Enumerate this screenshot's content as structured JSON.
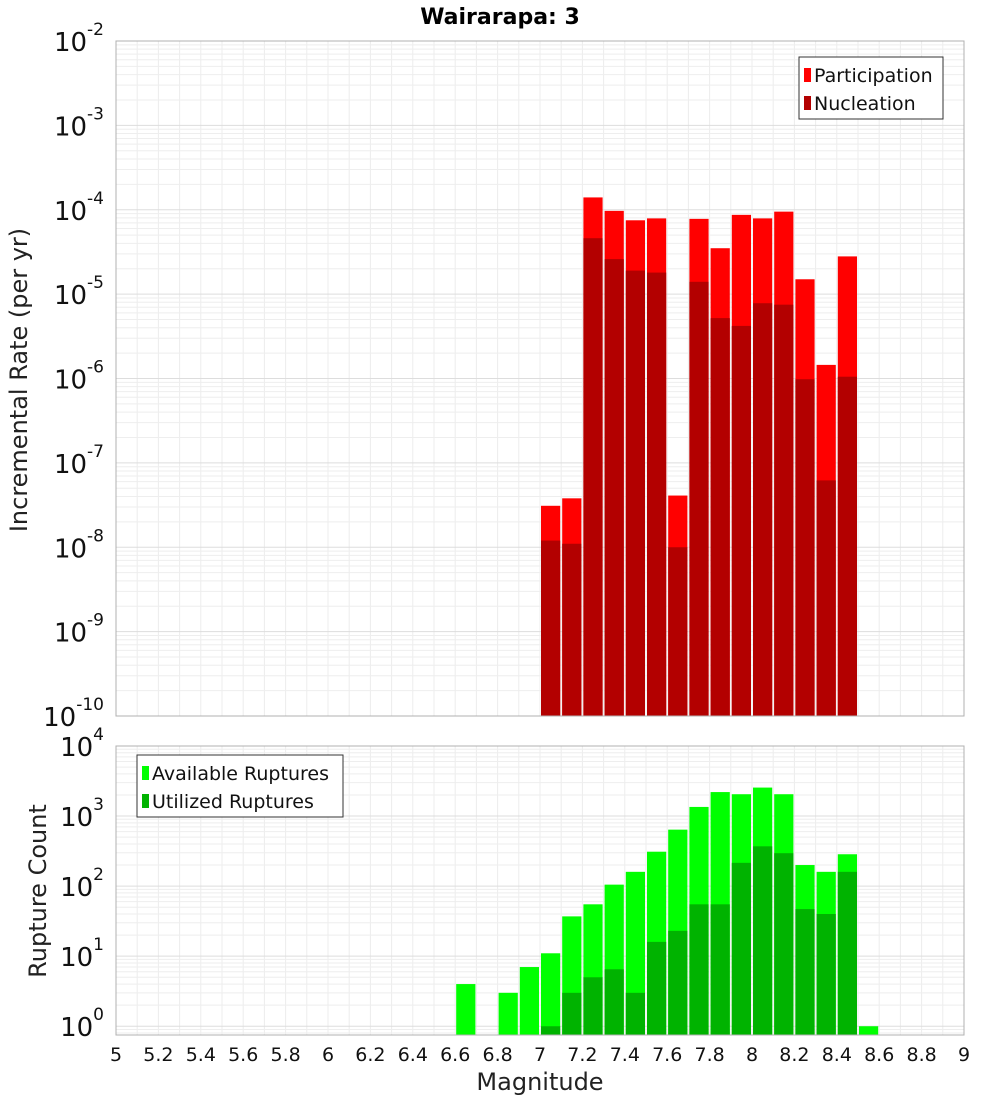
{
  "chart_data": [
    {
      "type": "bar",
      "title": "Wairarapa: 3",
      "xlabel": "",
      "ylabel": "Incremental Rate (per yr)",
      "yscale": "log",
      "ylim": [
        1e-10,
        0.01
      ],
      "xlim": [
        5,
        9
      ],
      "grid": true,
      "legend_position": "top-right",
      "y_tick_labels": [
        {
          "base": "10",
          "exp": "-10"
        },
        {
          "base": "10",
          "exp": "-9"
        },
        {
          "base": "10",
          "exp": "-8"
        },
        {
          "base": "10",
          "exp": "-7"
        },
        {
          "base": "10",
          "exp": "-6"
        },
        {
          "base": "10",
          "exp": "-5"
        },
        {
          "base": "10",
          "exp": "-4"
        },
        {
          "base": "10",
          "exp": "-3"
        },
        {
          "base": "10",
          "exp": "-2"
        }
      ],
      "x": [
        7.05,
        7.15,
        7.25,
        7.35,
        7.45,
        7.55,
        7.65,
        7.75,
        7.85,
        7.95,
        8.05,
        8.15,
        8.25,
        8.35,
        8.45
      ],
      "series": [
        {
          "name": "Participation",
          "color": "#ff0000",
          "values": [
            3.1e-08,
            3.8e-08,
            0.00014,
            9.7e-05,
            7.5e-05,
            7.9e-05,
            4.1e-08,
            7.8e-05,
            3.5e-05,
            8.7e-05,
            7.9e-05,
            9.5e-05,
            1.5e-05,
            1.45e-06,
            2.8e-05
          ]
        },
        {
          "name": "Nucleation",
          "color": "#b30000",
          "values": [
            1.2e-08,
            1.1e-08,
            4.6e-05,
            2.6e-05,
            1.9e-05,
            1.8e-05,
            1e-08,
            1.4e-05,
            5.2e-06,
            4.2e-06,
            7.8e-06,
            7.5e-06,
            9.8e-07,
            6.2e-08,
            1.05e-06
          ]
        }
      ]
    },
    {
      "type": "bar",
      "title": "",
      "xlabel": "Magnitude",
      "ylabel": "Rupture Count",
      "yscale": "log",
      "ylim": [
        0.75,
        10000
      ],
      "xlim": [
        5,
        9
      ],
      "grid": true,
      "legend_position": "top-left",
      "x_tick_labels": [
        "5",
        "5.2",
        "5.4",
        "5.6",
        "5.8",
        "6",
        "6.2",
        "6.4",
        "6.6",
        "6.8",
        "7",
        "7.2",
        "7.4",
        "7.6",
        "7.8",
        "8",
        "8.2",
        "8.4",
        "8.6",
        "8.8",
        "9"
      ],
      "y_tick_labels": [
        {
          "base": "10",
          "exp": "0"
        },
        {
          "base": "10",
          "exp": "1"
        },
        {
          "base": "10",
          "exp": "2"
        },
        {
          "base": "10",
          "exp": "3"
        },
        {
          "base": "10",
          "exp": "4"
        }
      ],
      "series": [
        {
          "name": "Available Ruptures",
          "color": "#00ff00",
          "x": [
            6.65,
            6.85,
            6.95,
            7.05,
            7.15,
            7.25,
            7.35,
            7.45,
            7.55,
            7.65,
            7.75,
            7.85,
            7.95,
            8.05,
            8.15,
            8.25,
            8.35,
            8.45,
            8.55
          ],
          "values": [
            4,
            3,
            7,
            11,
            37,
            55,
            105,
            160,
            310,
            640,
            1350,
            2200,
            2050,
            2550,
            2050,
            200,
            160,
            285,
            1
          ]
        },
        {
          "name": "Utilized Ruptures",
          "color": "#00b300",
          "x": [
            7.05,
            7.15,
            7.25,
            7.35,
            7.45,
            7.55,
            7.65,
            7.75,
            7.85,
            7.95,
            8.05,
            8.15,
            8.25,
            8.35,
            8.45
          ],
          "values": [
            1,
            3,
            5,
            6.5,
            3,
            16,
            23,
            55,
            55,
            215,
            370,
            295,
            47,
            40,
            160
          ]
        }
      ]
    }
  ]
}
